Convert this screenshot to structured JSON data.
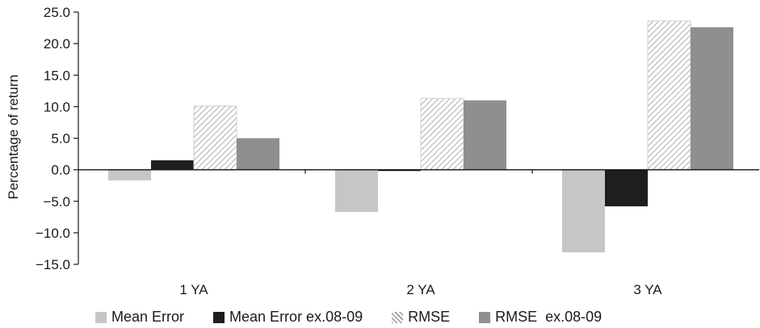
{
  "chart_data": {
    "type": "bar",
    "ylabel": "Percentage of return",
    "xlabel": "",
    "ylim": [
      -15.0,
      25.0
    ],
    "yticks": [
      "25.0",
      "20.0",
      "15.0",
      "10.0",
      "5.0",
      "0.0",
      "-5.0",
      "-10.0",
      "-15.0"
    ],
    "categories": [
      "1 YA",
      "2 YA",
      "3 YA"
    ],
    "series": [
      {
        "name": "Mean Error",
        "values": [
          -1.7,
          -6.7,
          -13.1
        ],
        "color": "#c6c6c6",
        "pattern": "solid"
      },
      {
        "name": "Mean Error ex.08-09",
        "values": [
          1.5,
          -0.2,
          -5.8
        ],
        "color": "#1e1e1e",
        "pattern": "solid"
      },
      {
        "name": "RMSE",
        "values": [
          10.1,
          11.3,
          23.6
        ],
        "color": "#ffffff",
        "pattern": "hatch"
      },
      {
        "name": "RMSE  ex.08-09",
        "values": [
          5.0,
          11.0,
          22.6
        ],
        "color": "#8f8f8f",
        "pattern": "solid"
      }
    ],
    "grid": false,
    "legend_position": "bottom"
  }
}
